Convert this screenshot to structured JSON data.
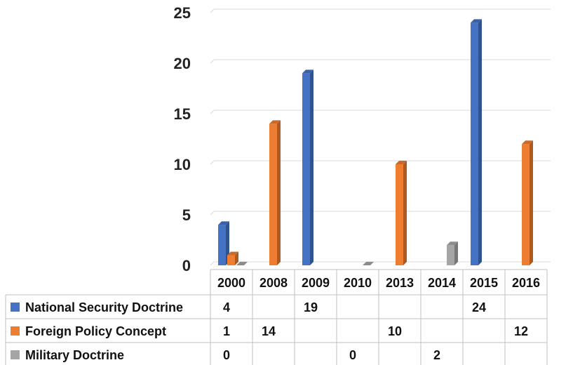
{
  "chart_data": {
    "type": "bar",
    "categories": [
      "2000",
      "2008",
      "2009",
      "2010",
      "2013",
      "2014",
      "2015",
      "2016"
    ],
    "series": [
      {
        "name": "National Security Doctrine",
        "color": "#4472C4",
        "values": [
          4,
          null,
          19,
          null,
          null,
          null,
          24,
          null
        ]
      },
      {
        "name": "Foreign Policy Concept",
        "color": "#ED7D31",
        "values": [
          1,
          14,
          null,
          null,
          10,
          null,
          null,
          12
        ]
      },
      {
        "name": "Military Doctrine",
        "color": "#A5A5A5",
        "values": [
          0,
          null,
          null,
          0,
          null,
          2,
          null,
          null
        ]
      }
    ],
    "yticks": [
      "0",
      "5",
      "10",
      "15",
      "20",
      "25"
    ],
    "ylim": [
      0,
      25
    ],
    "grid": true,
    "data_table": true,
    "table_values": [
      [
        "4",
        "",
        "19",
        "",
        "",
        "",
        "24",
        ""
      ],
      [
        "1",
        "14",
        "",
        "",
        "10",
        "",
        "",
        "12"
      ],
      [
        "0",
        "",
        "",
        "0",
        "",
        "2",
        "",
        ""
      ]
    ]
  }
}
